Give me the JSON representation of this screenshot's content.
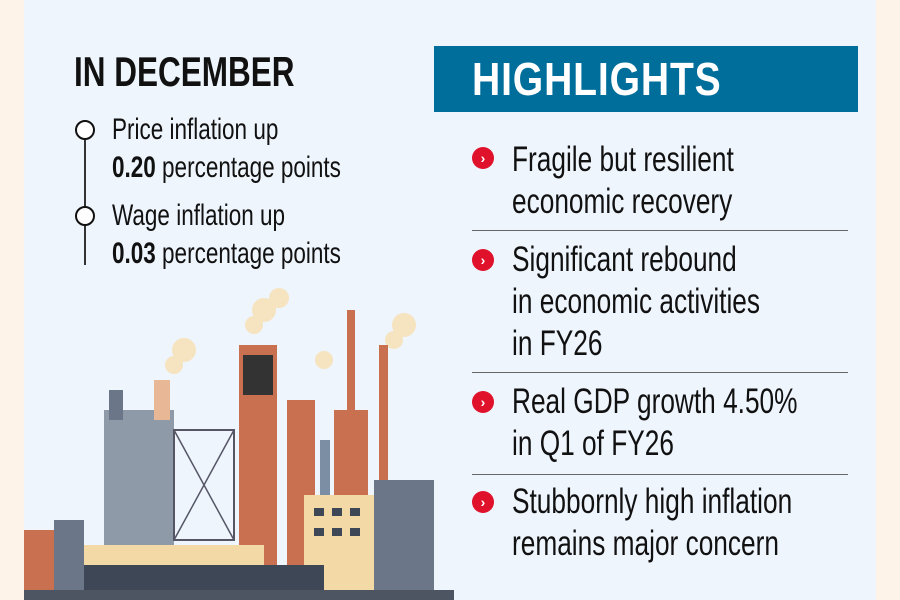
{
  "left": {
    "heading": "IN DECEMBER",
    "stats": [
      {
        "line1": "Price inflation up",
        "value": "0.20",
        "unit": " percentage points"
      },
      {
        "line1": "Wage inflation up",
        "value": "0.03",
        "unit": " percentage points"
      }
    ]
  },
  "highlights": {
    "title": "HIGHLIGHTS",
    "items": [
      {
        "lines": [
          "Fragile but resilient",
          "economic recovery"
        ]
      },
      {
        "lines": [
          "Significant rebound",
          "in economic activities",
          "in FY26"
        ]
      },
      {
        "lines": [
          "Real GDP growth 4.50%",
          "in Q1 of FY26"
        ]
      },
      {
        "lines": [
          "Stubbornly high inflation",
          "remains major concern"
        ]
      }
    ]
  },
  "colors": {
    "panel": "#eef5fd",
    "outer": "#fdf3e8",
    "header": "#006e9b",
    "bullet": "#e0112b"
  }
}
